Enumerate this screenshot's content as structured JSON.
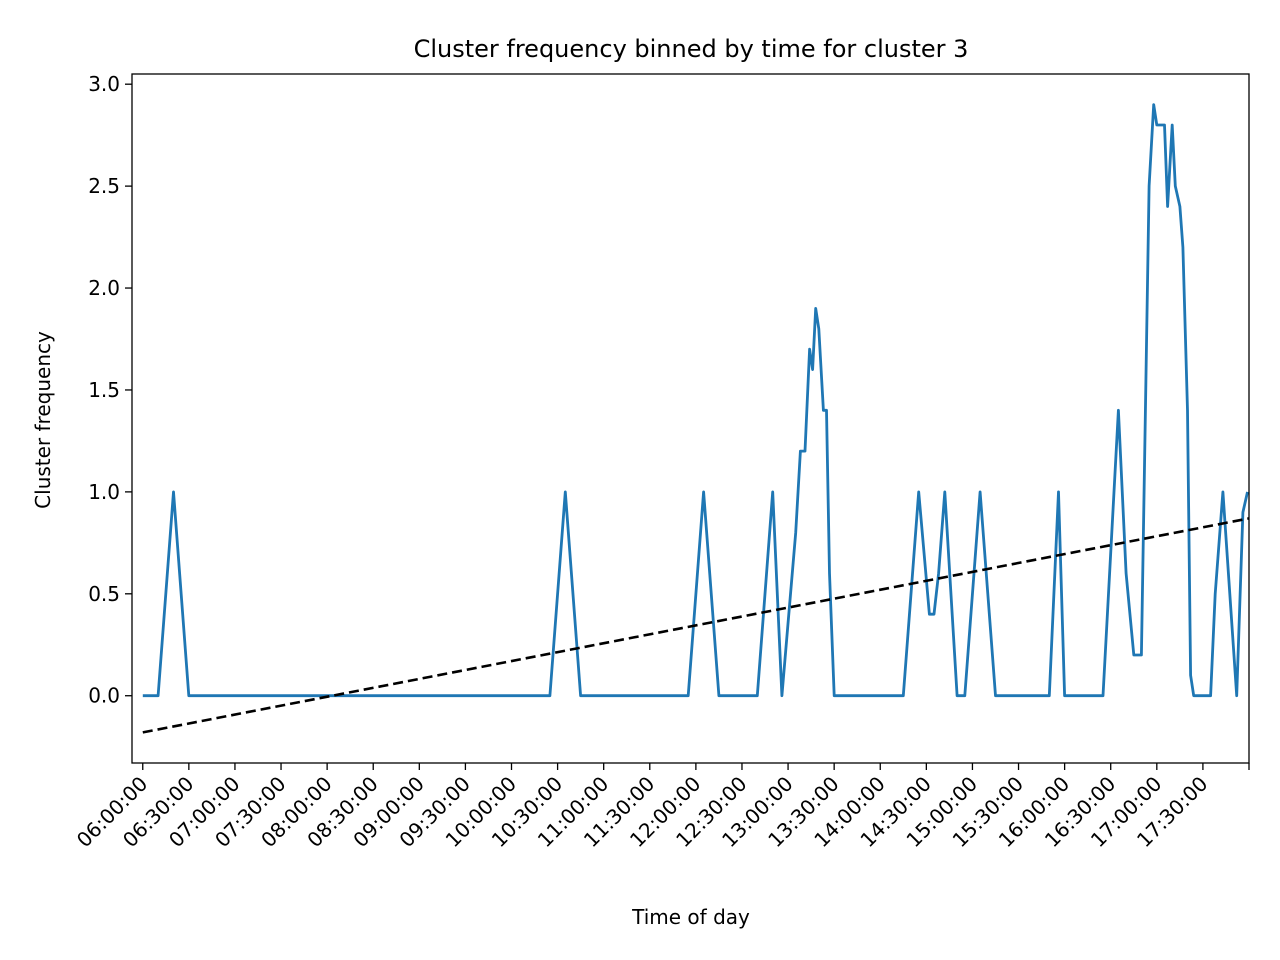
{
  "chart_data": {
    "type": "line",
    "title": "Cluster frequency binned by time for cluster 3",
    "xlabel": "Time of day",
    "ylabel": "Cluster frequency",
    "ylim": [
      -0.33,
      3.05
    ],
    "xlim": [
      "05:53:00",
      "18:00:00"
    ],
    "grid": false,
    "legend": "none",
    "x_ticks": [
      "06:00:00",
      "06:30:00",
      "07:00:00",
      "07:30:00",
      "08:00:00",
      "08:30:00",
      "09:00:00",
      "09:30:00",
      "10:00:00",
      "10:30:00",
      "11:00:00",
      "11:30:00",
      "12:00:00",
      "12:30:00",
      "13:00:00",
      "13:30:00",
      "14:00:00",
      "14:30:00",
      "15:00:00",
      "15:30:00",
      "16:00:00",
      "16:30:00",
      "17:00:00",
      "17:30:00",
      "18:00:00"
    ],
    "x_tick_labels": [
      "06:00:00",
      "06:30:00",
      "07:00:00",
      "07:30:00",
      "08:00:00",
      "08:30:00",
      "09:00:00",
      "09:30:00",
      "10:00:00",
      "10:30:00",
      "11:00:00",
      "11:30:00",
      "12:00:00",
      "12:30:00",
      "13:00:00",
      "13:30:00",
      "14:00:00",
      "14:30:00",
      "15:00:00",
      "15:30:00",
      "16:00:00",
      "16:30:00",
      "17:00:00",
      "17:30:00",
      ""
    ],
    "y_ticks": [
      0.0,
      0.5,
      1.0,
      1.5,
      2.0,
      2.5,
      3.0
    ],
    "y_tick_labels": [
      "0.0",
      "0.5",
      "1.0",
      "1.5",
      "2.0",
      "2.5",
      "3.0"
    ],
    "series": [
      {
        "color": "#1f77b4",
        "style": "solid",
        "x": [
          "06:00:00",
          "06:10:00",
          "06:20:00",
          "06:30:00",
          "06:35:00",
          "10:25:00",
          "10:35:00",
          "10:45:00",
          "11:55:00",
          "12:05:00",
          "12:15:00",
          "12:40:00",
          "12:50:00",
          "12:56:00",
          "13:05:00",
          "13:08:00",
          "13:11:00",
          "13:14:00",
          "13:16:00",
          "13:18:00",
          "13:20:00",
          "13:23:00",
          "13:25:00",
          "13:27:00",
          "13:30:00",
          "13:40:00",
          "14:15:00",
          "14:25:00",
          "14:32:00",
          "14:35:00",
          "14:38:00",
          "14:42:00",
          "14:50:00",
          "14:55:00",
          "15:05:00",
          "15:15:00",
          "15:25:00",
          "15:50:00",
          "15:56:00",
          "16:00:00",
          "16:06:00",
          "16:10:00",
          "16:15:00",
          "16:25:00",
          "16:35:00",
          "16:40:00",
          "16:45:00",
          "16:50:00",
          "16:55:00",
          "16:58:00",
          "17:00:00",
          "17:05:00",
          "17:07:00",
          "17:10:00",
          "17:12:00",
          "17:15:00",
          "17:17:00",
          "17:20:00",
          "17:22:00",
          "17:24:00",
          "17:28:00",
          "17:35:00",
          "17:38:00",
          "17:43:00",
          "17:52:00",
          "17:56:00",
          "17:59:00"
        ],
        "y": [
          0.0,
          0.0,
          1.0,
          0.0,
          0.0,
          0.0,
          1.0,
          0.0,
          0.0,
          1.0,
          0.0,
          0.0,
          1.0,
          0.0,
          0.8,
          1.2,
          1.2,
          1.7,
          1.6,
          1.9,
          1.8,
          1.4,
          1.4,
          0.6,
          0.0,
          0.0,
          0.0,
          1.0,
          0.4,
          0.4,
          0.6,
          1.0,
          0.0,
          0.0,
          1.0,
          0.0,
          0.0,
          0.0,
          1.0,
          0.0,
          0.0,
          0.0,
          0.0,
          0.0,
          1.4,
          0.6,
          0.2,
          0.2,
          2.5,
          2.9,
          2.8,
          2.8,
          2.4,
          2.8,
          2.5,
          2.4,
          2.2,
          1.4,
          0.1,
          0.0,
          0.0,
          0.0,
          0.5,
          1.0,
          0.0,
          0.9,
          1.0
        ]
      },
      {
        "color": "#000000",
        "style": "dashed",
        "x": [
          "06:00:00",
          "18:00:00"
        ],
        "y": [
          -0.18,
          0.87
        ]
      }
    ]
  }
}
